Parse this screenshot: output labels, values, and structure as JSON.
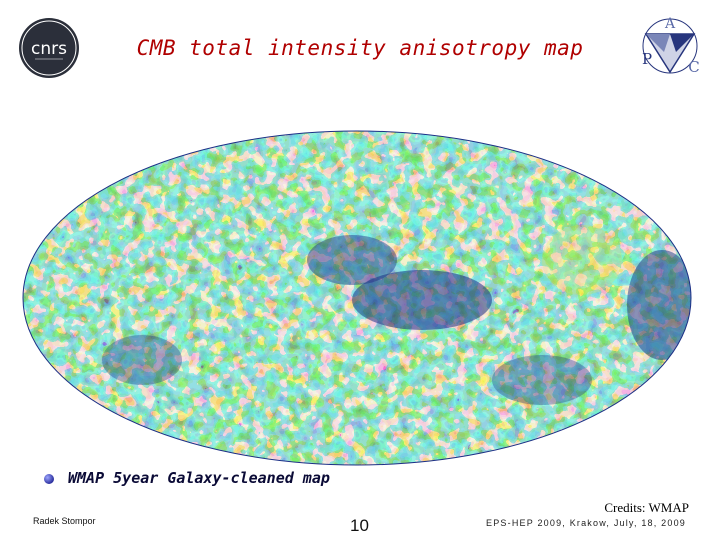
{
  "slide": {
    "title": "CMB total intensity anisotropy map",
    "bullet_text": "WMAP 5year Galaxy-cleaned map",
    "credits": "Credits: WMAP",
    "footer_author": "Radek Stompor",
    "page_number": "10",
    "footer_event": "EPS-HEP 2009, Krakow, July, 18, 2009"
  },
  "logos": {
    "left": {
      "text": "cnrs",
      "icon": "cnrs-logo"
    },
    "right": {
      "letters": [
        "A",
        "P",
        "C"
      ],
      "icon": "apc-logo"
    }
  },
  "colors": {
    "title": "#b00000",
    "map_cold": "#1c2f86",
    "map_mid": "#2aa1c8",
    "map_warm": "#e6e23a",
    "map_hot": "#d42a1a"
  }
}
